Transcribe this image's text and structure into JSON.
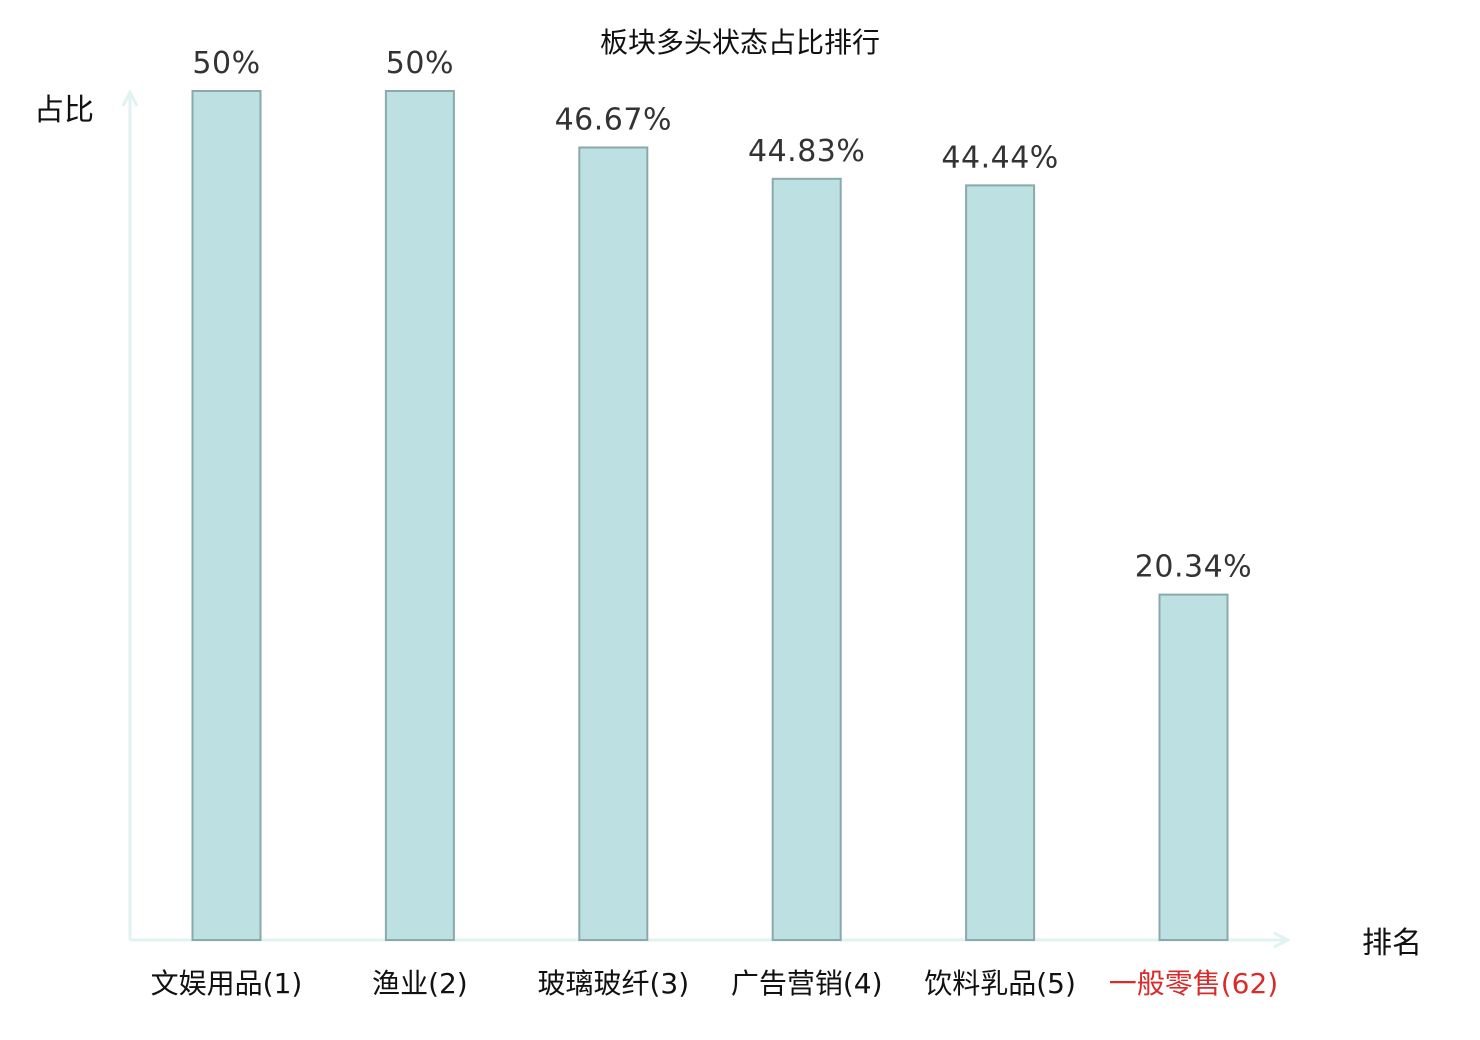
{
  "chart_data": {
    "type": "bar",
    "title": "板块多头状态占比排行",
    "ylabel": "占比",
    "xlabel": "排名",
    "categories": [
      "文娱用品(1)",
      "渔业(2)",
      "玻璃玻纤(3)",
      "广告营销(4)",
      "饮料乳品(5)",
      "一般零售(62)"
    ],
    "values": [
      50,
      50,
      46.67,
      44.83,
      44.44,
      20.34
    ],
    "value_labels": [
      "50%",
      "50%",
      "46.67%",
      "44.83%",
      "44.44%",
      "20.34%"
    ],
    "highlight_index": 5,
    "ylim": [
      0,
      50
    ],
    "grid": false,
    "legend": "none",
    "colors": {
      "bar_fill": "#bde0e3",
      "bar_stroke": "#8aa9ab",
      "axis": "#e1f3f1",
      "text": "#111111",
      "value_text": "#333333",
      "highlight": "#d92b2b"
    }
  }
}
